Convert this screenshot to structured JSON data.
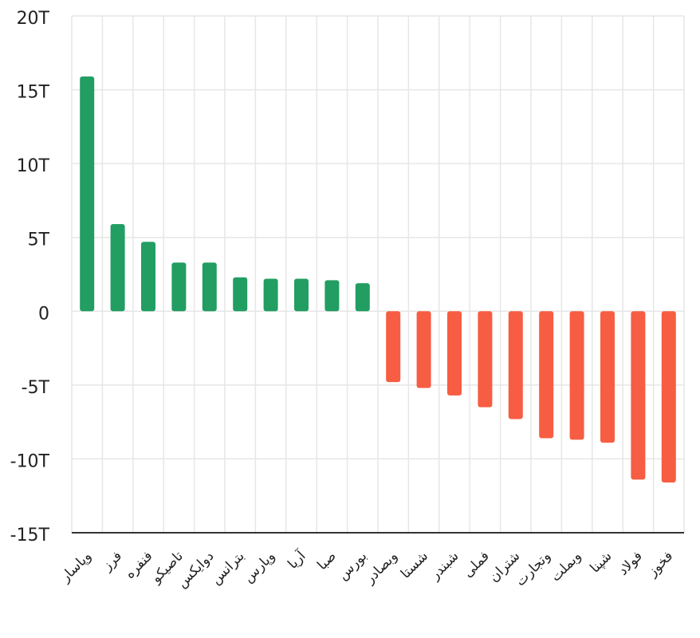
{
  "chart_data": {
    "type": "bar",
    "categories": [
      "وپاسار",
      "فرز",
      "فنفره",
      "تاصیکو",
      "دوایکس",
      "بترانس",
      "وپارس",
      "آریا",
      "صبا",
      "بورس",
      "وبصادر",
      "شستا",
      "شبندر",
      "فملی",
      "شتران",
      "وتجارت",
      "وبملت",
      "شپنا",
      "فولاد",
      "فخوز"
    ],
    "values": [
      15.9,
      5.9,
      4.7,
      3.3,
      3.3,
      2.3,
      2.2,
      2.2,
      2.1,
      1.9,
      -4.8,
      -5.2,
      -5.7,
      -6.5,
      -7.3,
      -8.6,
      -8.7,
      -8.9,
      -11.4,
      -11.6
    ],
    "unit": "T",
    "ylim": [
      -15,
      20
    ],
    "yticks": [
      20,
      15,
      10,
      5,
      0,
      -5,
      -10,
      -15
    ],
    "ytick_labels": [
      "20T",
      "15T",
      "10T",
      "5T",
      "0",
      "-5T",
      "-10T",
      "-15T"
    ],
    "positive_color": "#229e62",
    "negative_color": "#f75d42",
    "grid": true,
    "title": "",
    "xlabel": "",
    "ylabel": ""
  }
}
